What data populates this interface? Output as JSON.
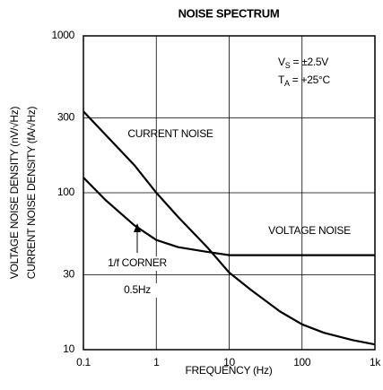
{
  "chart_data": {
    "type": "line",
    "title": "NOISE SPECTRUM",
    "xlabel": "FREQUENCY (Hz)",
    "ylabels": [
      "VOLTAGE NOISE DENSITY (nV/√Hz)",
      "CURRENT NOISE DENSITY (fA/√Hz)"
    ],
    "xscale": "log",
    "yscale": "log",
    "grid": true,
    "xlim": [
      0.1,
      1000
    ],
    "ylim": [
      10,
      1000
    ],
    "xticks": [
      0.1,
      1,
      10,
      100,
      {
        "value": 1000,
        "label": "1k"
      }
    ],
    "yticks": [
      10,
      30,
      100,
      300,
      1000
    ],
    "x": [
      0.1,
      0.2,
      0.5,
      1,
      2,
      5,
      10,
      20,
      50,
      100,
      200,
      500,
      1000
    ],
    "series": [
      {
        "name": "CURRENT NOISE",
        "color": "#000000",
        "values": [
          330,
          235,
          150,
          100,
          70,
          45,
          31,
          24,
          17.5,
          14.5,
          12.8,
          11.5,
          10.8
        ]
      },
      {
        "name": "VOLTAGE NOISE",
        "color": "#000000",
        "values": [
          125,
          90,
          62,
          50,
          45,
          42,
          40,
          40,
          40,
          40,
          40,
          40,
          40
        ]
      }
    ],
    "annotations": [
      {
        "main": "V",
        "sub": "S",
        "rest": " = ±2.5V"
      },
      {
        "main": "T",
        "sub": "A",
        "rest": " = +25°C"
      },
      {
        "text": "1/f CORNER"
      },
      {
        "text": "0.5Hz"
      }
    ]
  }
}
